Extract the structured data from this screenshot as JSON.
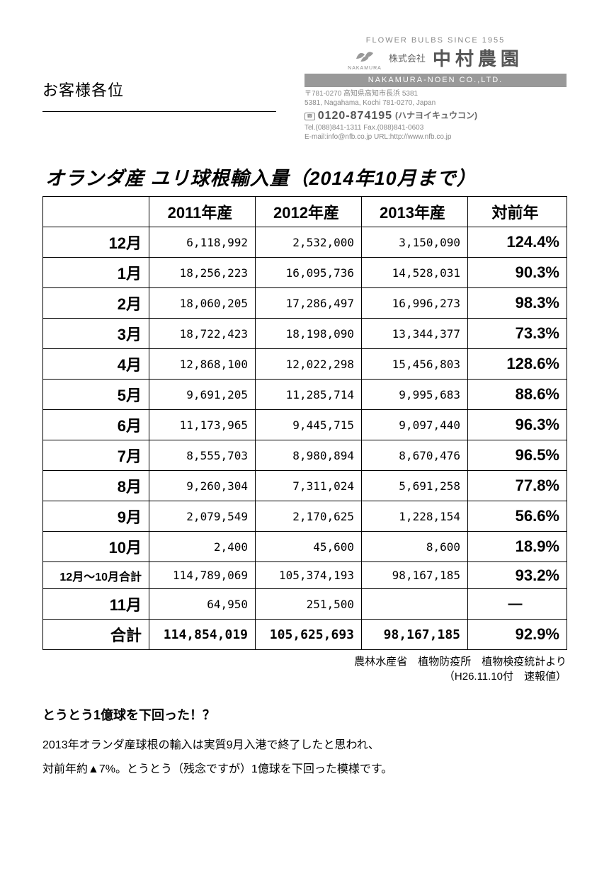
{
  "header": {
    "recipient": "お客様各位",
    "tagline": "FLOWER BULBS SINCE 1955",
    "kabushiki": "株式会社",
    "company_jp": "中村農園",
    "company_en": "NAKAMURA-NOEN CO.,LTD.",
    "logo_label": "NAKAMURA",
    "addr1": "〒781-0270 高知県高知市長浜 5381",
    "addr2": "5381, Nagahama, Kochi 781-0270, Japan",
    "freedial_icon": "☎",
    "freedial_num": "0120-874195",
    "freedial_label": "(ハナヨイキュウコン)",
    "tel_fax": "Tel.(088)841-1311  Fax.(088)841-0603",
    "email_url": "E-mail:info@nfb.co.jp  URL:http://www.nfb.co.jp"
  },
  "title": "オランダ産 ユリ球根輸入量（2014年10月まで）",
  "table": {
    "columns": [
      "",
      "2011年産",
      "2012年産",
      "2013年産",
      "対前年"
    ],
    "rows": [
      {
        "label": "12月",
        "c1": "6,118,992",
        "c2": "2,532,000",
        "c3": "3,150,090",
        "pct": "124.4%"
      },
      {
        "label": "1月",
        "c1": "18,256,223",
        "c2": "16,095,736",
        "c3": "14,528,031",
        "pct": "90.3%"
      },
      {
        "label": "2月",
        "c1": "18,060,205",
        "c2": "17,286,497",
        "c3": "16,996,273",
        "pct": "98.3%"
      },
      {
        "label": "3月",
        "c1": "18,722,423",
        "c2": "18,198,090",
        "c3": "13,344,377",
        "pct": "73.3%"
      },
      {
        "label": "4月",
        "c1": "12,868,100",
        "c2": "12,022,298",
        "c3": "15,456,803",
        "pct": "128.6%"
      },
      {
        "label": "5月",
        "c1": "9,691,205",
        "c2": "11,285,714",
        "c3": "9,995,683",
        "pct": "88.6%"
      },
      {
        "label": "6月",
        "c1": "11,173,965",
        "c2": "9,445,715",
        "c3": "9,097,440",
        "pct": "96.3%"
      },
      {
        "label": "7月",
        "c1": "8,555,703",
        "c2": "8,980,894",
        "c3": "8,670,476",
        "pct": "96.5%"
      },
      {
        "label": "8月",
        "c1": "9,260,304",
        "c2": "7,311,024",
        "c3": "5,691,258",
        "pct": "77.8%"
      },
      {
        "label": "9月",
        "c1": "2,079,549",
        "c2": "2,170,625",
        "c3": "1,228,154",
        "pct": "56.6%"
      },
      {
        "label": "10月",
        "c1": "2,400",
        "c2": "45,600",
        "c3": "8,600",
        "pct": "18.9%"
      }
    ],
    "subtotal": {
      "label": "12月～10月合計",
      "c1": "114,789,069",
      "c2": "105,374,193",
      "c3": "98,167,185",
      "pct": "93.2%"
    },
    "nov": {
      "label": "11月",
      "c1": "64,950",
      "c2": "251,500",
      "c3": "",
      "pct": "―"
    },
    "total": {
      "label": "合計",
      "c1": "114,854,019",
      "c2": "105,625,693",
      "c3": "98,167,185",
      "pct": "92.9%"
    }
  },
  "source": {
    "line1": "農林水産省　植物防疫所　植物検疫統計より",
    "line2": "（H26.11.10付　速報値）"
  },
  "commentary": {
    "heading": "とうとう1億球を下回った！？",
    "p1": "2013年オランダ産球根の輸入は実質9月入港で終了したと思われ、",
    "p2": "対前年約▲7%。とうとう（残念ですが）1億球を下回った模様です。"
  }
}
